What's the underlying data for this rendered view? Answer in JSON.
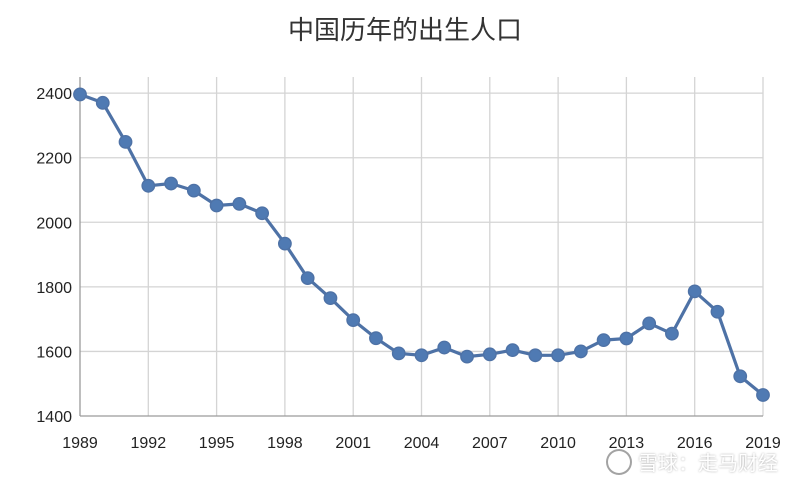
{
  "chart_data": {
    "type": "line",
    "title": "中国历年的出生人口",
    "xlabel": "",
    "ylabel": "",
    "x_ticks": [
      "1989",
      "1992",
      "1995",
      "1998",
      "2001",
      "2004",
      "2007",
      "2010",
      "2013",
      "2016",
      "2019"
    ],
    "y_ticks": [
      "1400",
      "1600",
      "1800",
      "2000",
      "2200",
      "2400"
    ],
    "xlim": [
      1989,
      2019
    ],
    "ylim": [
      1400,
      2450
    ],
    "grid": true,
    "legend": "none",
    "series": [
      {
        "color": "#4e72a6",
        "marker_color": "#4f7ab3",
        "x": [
          1989,
          1990,
          1991,
          1992,
          1993,
          1994,
          1995,
          1996,
          1997,
          1998,
          1999,
          2000,
          2001,
          2002,
          2003,
          2004,
          2005,
          2006,
          2007,
          2008,
          2009,
          2010,
          2011,
          2012,
          2013,
          2014,
          2015,
          2016,
          2017,
          2018,
          2019
        ],
        "values": [
          2396,
          2370,
          2249,
          2113,
          2120,
          2098,
          2052,
          2057,
          2028,
          1934,
          1827,
          1765,
          1697,
          1641,
          1594,
          1588,
          1612,
          1584,
          1591,
          1604,
          1588,
          1588,
          1600,
          1635,
          1640,
          1687,
          1655,
          1786,
          1723,
          1523,
          1465
        ]
      }
    ]
  },
  "watermark": {
    "text": "雪球：走马财经",
    "icon": "snowball-logo-icon"
  }
}
